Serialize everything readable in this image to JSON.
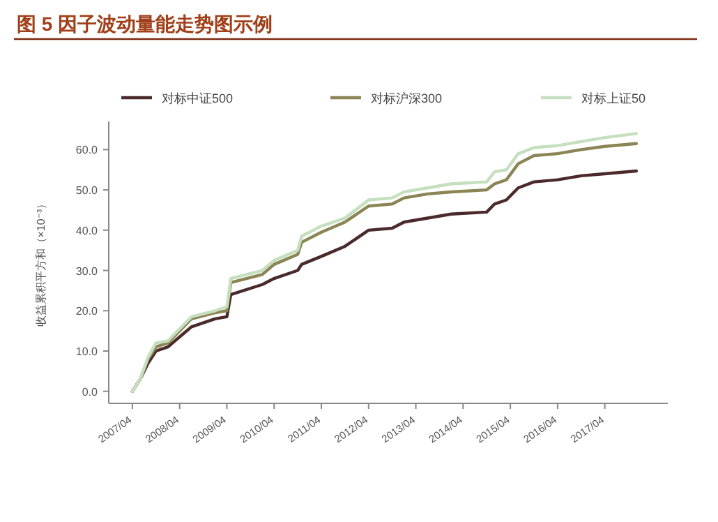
{
  "chart_data": {
    "type": "line",
    "title": "图 5  因子波动量能走势图示例",
    "ylabel": "收益累积平方和（×10⁻³）",
    "legend": "top",
    "x": [
      "2007-04",
      "2007-06",
      "2007-08",
      "2007-10",
      "2008-01",
      "2008-04",
      "2008-07",
      "2009-01",
      "2009-04",
      "2009-05",
      "2010-01",
      "2010-04",
      "2010-10",
      "2010-11",
      "2011-04",
      "2011-10",
      "2012-04",
      "2012-10",
      "2013-01",
      "2013-07",
      "2014-01",
      "2014-10",
      "2014-12",
      "2015-03",
      "2015-06",
      "2015-10",
      "2016-04",
      "2016-10",
      "2017-04",
      "2017-12"
    ],
    "series": [
      {
        "name": "对标中证500",
        "color": "#4a2a2a",
        "values": [
          0,
          3,
          7,
          10,
          11,
          13.5,
          16,
          18,
          18.5,
          24,
          26.5,
          28,
          30,
          31.5,
          33.5,
          36,
          40,
          40.5,
          42,
          43,
          44,
          44.5,
          46.5,
          47.5,
          50.5,
          52,
          52.5,
          53.5,
          54,
          54.7
        ]
      },
      {
        "name": "对标沪深300",
        "color": "#8b8455",
        "values": [
          0,
          3,
          8,
          11,
          12,
          15,
          18,
          19.5,
          20,
          27,
          29,
          31.5,
          34,
          37,
          39.5,
          42,
          46,
          46.5,
          48,
          49,
          49.5,
          50,
          51.5,
          52.5,
          56.5,
          58.5,
          59,
          60,
          60.8,
          61.5
        ]
      },
      {
        "name": "对标上证50",
        "color": "#c5dfbf",
        "values": [
          0,
          3,
          8.5,
          12,
          12.5,
          15.5,
          18.5,
          20,
          21,
          28,
          30,
          32.5,
          35,
          38.5,
          41,
          43,
          47.5,
          48,
          49.5,
          50.5,
          51.5,
          52,
          54.5,
          55,
          59,
          60.5,
          61,
          62,
          63,
          64
        ]
      }
    ],
    "xlim": [
      "2006-10",
      "2018-08"
    ],
    "ylim": [
      -3,
      67
    ],
    "xticks": [
      {
        "value": "2007-04",
        "label": "2007/04"
      },
      {
        "value": "2008-04",
        "label": "2008/04"
      },
      {
        "value": "2009-04",
        "label": "2009/04"
      },
      {
        "value": "2010-04",
        "label": "2010/04"
      },
      {
        "value": "2011-04",
        "label": "2011/04"
      },
      {
        "value": "2012-04",
        "label": "2012/04"
      },
      {
        "value": "2013-04",
        "label": "2013/04"
      },
      {
        "value": "2014-04",
        "label": "2014/04"
      },
      {
        "value": "2015-04",
        "label": "2015/04"
      },
      {
        "value": "2016-04",
        "label": "2016/04"
      },
      {
        "value": "2017-04",
        "label": "2017/04"
      }
    ],
    "yticks": [
      {
        "value": 0,
        "label": "0.0"
      },
      {
        "value": 10,
        "label": "10.0"
      },
      {
        "value": 20,
        "label": "20.0"
      },
      {
        "value": 30,
        "label": "30.0"
      },
      {
        "value": 40,
        "label": "40.0"
      },
      {
        "value": 50,
        "label": "50.0"
      },
      {
        "value": 60,
        "label": "60.0"
      }
    ]
  }
}
